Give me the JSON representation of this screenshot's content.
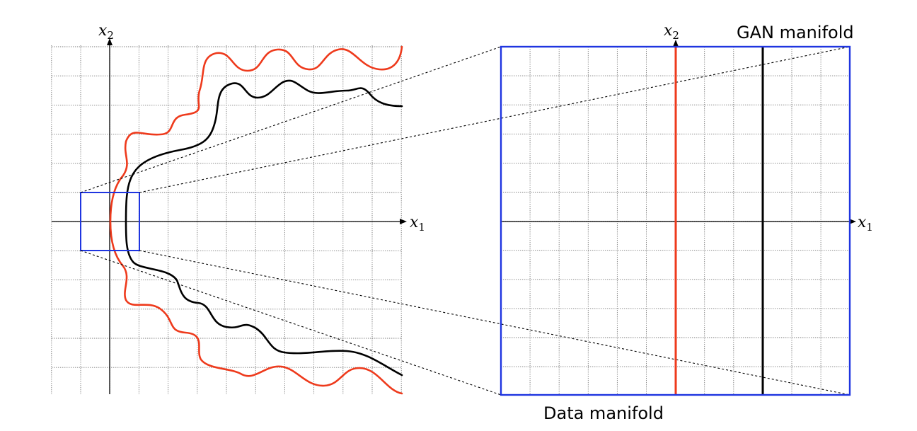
{
  "colors": {
    "data_manifold": "#ee3a1c",
    "gan_manifold": "#000000",
    "zoom_box": "#1f35e0",
    "grid": "#7a7a7a"
  },
  "left_plot": {
    "x_axis_label": "x",
    "x_axis_subscript": "1",
    "y_axis_label": "x",
    "y_axis_subscript": "2"
  },
  "right_plot": {
    "x_axis_label": "x",
    "x_axis_subscript": "1",
    "y_axis_label": "x",
    "y_axis_subscript": "2",
    "gan_manifold_label": "GAN manifold",
    "data_manifold_label": "Data manifold"
  }
}
